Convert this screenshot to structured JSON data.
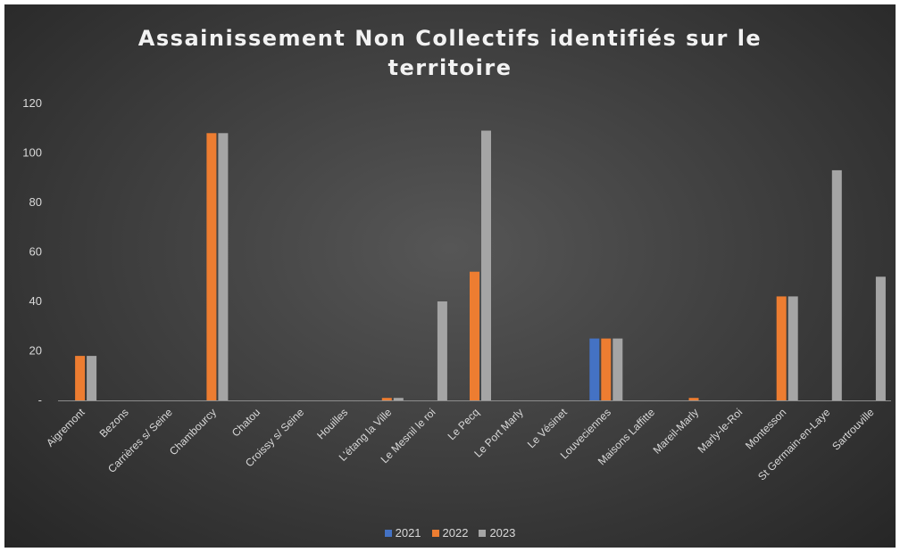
{
  "chart_data": {
    "type": "bar",
    "title": "Assainissement Non Collectifs identifiés sur le territoire",
    "xlabel": "",
    "ylabel": "",
    "ylim": [
      0,
      120
    ],
    "yticks": [
      "-",
      "20",
      "40",
      "60",
      "80",
      "100",
      "120"
    ],
    "grid": false,
    "legend_position": "bottom",
    "categories": [
      "Aigremont",
      "Bezons",
      "Carrières s/ Seine",
      "Chambourcy",
      "Chatou",
      "Croissy s/ Seine",
      "Houilles",
      "L'étang la Ville",
      "Le Mesnil le roi",
      "Le Pecq",
      "Le Port Marly",
      "Le Vésinet",
      "Louveciennes",
      "Maisons Laffitte",
      "Mareil-Marly",
      "Marly-le-Roi",
      "Montesson",
      "St Germain-en-Laye",
      "Sartrouville"
    ],
    "series": [
      {
        "name": "2021",
        "color": "#4472c4",
        "values": [
          0,
          0,
          0,
          0,
          0,
          0,
          0,
          0,
          0,
          0,
          0,
          0,
          25,
          0,
          0,
          0,
          0,
          0,
          0
        ]
      },
      {
        "name": "2022",
        "color": "#ed7d31",
        "values": [
          18,
          0,
          0,
          108,
          0,
          0,
          0,
          1,
          0,
          52,
          0,
          0,
          25,
          0,
          1,
          0,
          42,
          0,
          0
        ]
      },
      {
        "name": "2023",
        "color": "#a5a5a5",
        "values": [
          18,
          0,
          0,
          108,
          0,
          0,
          0,
          1,
          40,
          109,
          0,
          0,
          25,
          0,
          0,
          0,
          42,
          93,
          50
        ]
      }
    ]
  }
}
